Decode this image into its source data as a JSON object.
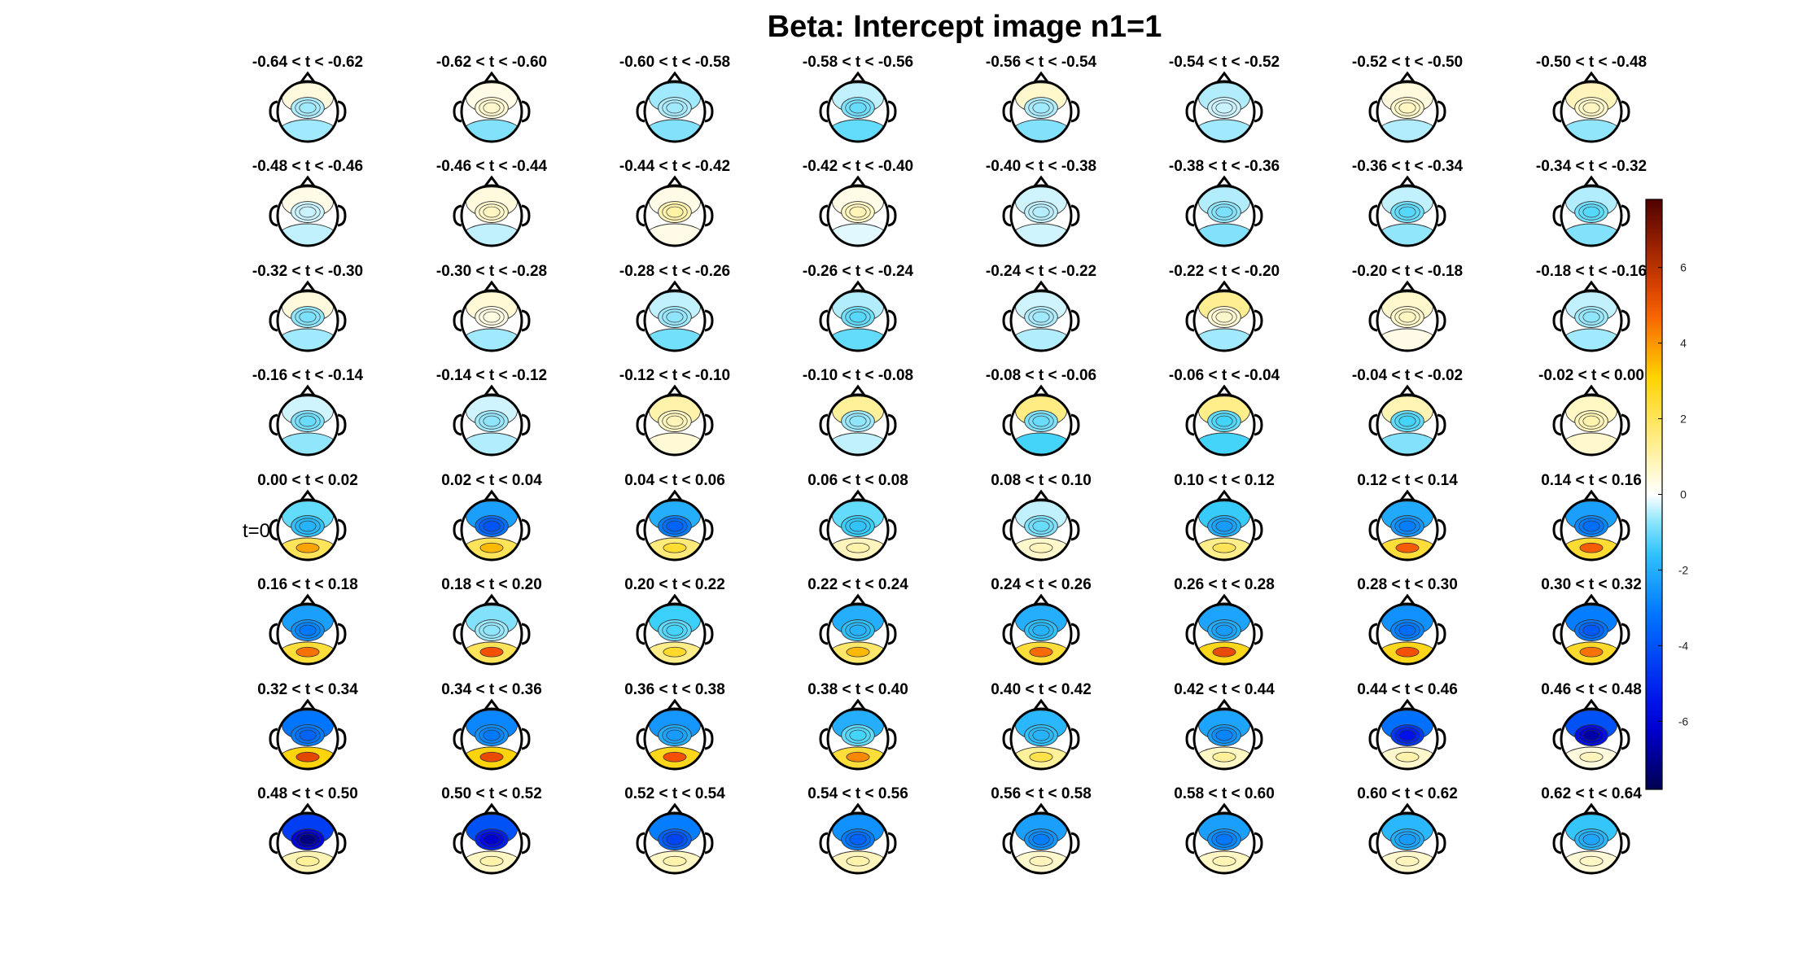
{
  "chart_data": {
    "type": "heatmap",
    "title": "Beta: Intercept image  n1=1",
    "grid": {
      "rows": 8,
      "cols": 8
    },
    "colorbar": {
      "colormap": "jet",
      "range": [
        -7.8,
        7.8
      ],
      "ticks": [
        -6,
        -4,
        -2,
        0,
        2,
        4,
        6
      ],
      "tick_labels": [
        "-6",
        "-4",
        "-2",
        "0",
        "2",
        "4",
        "6"
      ]
    },
    "marker_label": "t=0",
    "marker_panel": "0.00 < t < 0.02",
    "panels": [
      {
        "label": "-0.64 < t < -0.62",
        "front": 0.4,
        "central": -0.5,
        "posterior": -0.6
      },
      {
        "label": "-0.62 < t < -0.60",
        "front": 0.3,
        "central": 0.5,
        "posterior": -0.8
      },
      {
        "label": "-0.60 < t < -0.58",
        "front": -0.6,
        "central": -0.5,
        "posterior": -0.8
      },
      {
        "label": "-0.58 < t < -0.56",
        "front": -0.4,
        "central": -0.8,
        "posterior": -1.0
      },
      {
        "label": "-0.56 < t < -0.54",
        "front": 0.6,
        "central": -0.5,
        "posterior": -0.8
      },
      {
        "label": "-0.54 < t < -0.52",
        "front": -0.5,
        "central": -0.3,
        "posterior": -0.6
      },
      {
        "label": "-0.52 < t < -0.50",
        "front": 0.4,
        "central": 0.6,
        "posterior": -0.5
      },
      {
        "label": "-0.50 < t < -0.48",
        "front": 0.8,
        "central": 0.6,
        "posterior": -0.7
      },
      {
        "label": "-0.48 < t < -0.46",
        "front": 0.3,
        "central": -0.3,
        "posterior": -0.4
      },
      {
        "label": "-0.46 < t < -0.44",
        "front": 0.4,
        "central": 0.6,
        "posterior": -0.4
      },
      {
        "label": "-0.44 < t < -0.42",
        "front": 0.3,
        "central": 0.9,
        "posterior": 0.3
      },
      {
        "label": "-0.42 < t < -0.40",
        "front": 0.3,
        "central": 0.7,
        "posterior": -0.2
      },
      {
        "label": "-0.40 < t < -0.38",
        "front": -0.3,
        "central": -0.4,
        "posterior": -0.3
      },
      {
        "label": "-0.38 < t < -0.36",
        "front": -0.5,
        "central": -0.7,
        "posterior": -0.8
      },
      {
        "label": "-0.36 < t < -0.34",
        "front": -0.4,
        "central": -0.9,
        "posterior": -0.7
      },
      {
        "label": "-0.34 < t < -0.32",
        "front": -0.5,
        "central": -0.9,
        "posterior": -0.8
      },
      {
        "label": "-0.32 < t < -0.30",
        "front": 0.4,
        "central": -0.7,
        "posterior": -0.6
      },
      {
        "label": "-0.30 < t < -0.28",
        "front": 0.5,
        "central": 0.3,
        "posterior": -0.6
      },
      {
        "label": "-0.28 < t < -0.26",
        "front": -0.4,
        "central": -0.6,
        "posterior": -0.9
      },
      {
        "label": "-0.26 < t < -0.24",
        "front": -0.5,
        "central": -0.9,
        "posterior": -1.0
      },
      {
        "label": "-0.24 < t < -0.22",
        "front": -0.3,
        "central": -0.5,
        "posterior": -0.5
      },
      {
        "label": "-0.22 < t < -0.20",
        "front": 1.3,
        "central": 0.5,
        "posterior": -0.6
      },
      {
        "label": "-0.20 < t < -0.18",
        "front": 0.6,
        "central": 0.6,
        "posterior": 0.3
      },
      {
        "label": "-0.18 < t < -0.16",
        "front": -0.4,
        "central": -0.6,
        "posterior": -0.6
      },
      {
        "label": "-0.16 < t < -0.14",
        "front": -0.3,
        "central": -0.8,
        "posterior": -0.7
      },
      {
        "label": "-0.14 < t < -0.12",
        "front": -0.3,
        "central": -0.6,
        "posterior": -0.5
      },
      {
        "label": "-0.12 < t < -0.10",
        "front": 1.0,
        "central": 0.7,
        "posterior": 0.5
      },
      {
        "label": "-0.10 < t < -0.08",
        "front": 1.2,
        "central": -0.6,
        "posterior": -0.4
      },
      {
        "label": "-0.08 < t < -0.06",
        "front": 1.5,
        "central": -0.8,
        "posterior": -1.2
      },
      {
        "label": "-0.06 < t < -0.04",
        "front": 1.4,
        "central": -1.0,
        "posterior": -1.2
      },
      {
        "label": "-0.04 < t < -0.02",
        "front": 0.9,
        "central": -1.0,
        "posterior": -0.8
      },
      {
        "label": "-0.02 < t < 0.00",
        "front": 0.7,
        "central": 0.8,
        "posterior": 0.6
      },
      {
        "label": "0.00 < t < 0.02",
        "front": -1.0,
        "central": -1.6,
        "posterior": 2.0,
        "peak": 3.8
      },
      {
        "label": "0.02 < t < 0.04",
        "front": -2.3,
        "central": -3.3,
        "posterior": 2.0,
        "peak": 3.5
      },
      {
        "label": "0.04 < t < 0.06",
        "front": -2.0,
        "central": -3.0,
        "posterior": 1.6,
        "peak": 2.5
      },
      {
        "label": "0.06 < t < 0.08",
        "front": -1.0,
        "central": -1.3,
        "posterior": 0.8,
        "peak": 1.0
      },
      {
        "label": "0.08 < t < 0.10",
        "front": -0.4,
        "central": -0.8,
        "posterior": 0.6,
        "peak": 0.8
      },
      {
        "label": "0.10 < t < 0.12",
        "front": -1.4,
        "central": -2.0,
        "posterior": 1.4,
        "peak": 2.0
      },
      {
        "label": "0.12 < t < 0.14",
        "front": -2.1,
        "central": -2.5,
        "posterior": 2.4,
        "peak": 4.8
      },
      {
        "label": "0.14 < t < 0.16",
        "front": -2.3,
        "central": -2.8,
        "posterior": 2.5,
        "peak": 4.8
      },
      {
        "label": "0.16 < t < 0.18",
        "front": -2.3,
        "central": -2.6,
        "posterior": 2.4,
        "peak": 4.5
      },
      {
        "label": "0.18 < t < 0.20",
        "front": -0.8,
        "central": -0.6,
        "posterior": 2.0,
        "peak": 5.0
      },
      {
        "label": "0.20 < t < 0.22",
        "front": -1.3,
        "central": -1.0,
        "posterior": 1.4,
        "peak": 2.6
      },
      {
        "label": "0.22 < t < 0.24",
        "front": -2.0,
        "central": -1.6,
        "posterior": 1.8,
        "peak": 3.5
      },
      {
        "label": "0.24 < t < 0.26",
        "front": -2.0,
        "central": -1.6,
        "posterior": 2.4,
        "peak": 4.6
      },
      {
        "label": "0.26 < t < 0.28",
        "front": -2.2,
        "central": -2.0,
        "posterior": 2.8,
        "peak": 5.2
      },
      {
        "label": "0.28 < t < 0.30",
        "front": -2.6,
        "central": -2.8,
        "posterior": 2.8,
        "peak": 5.0
      },
      {
        "label": "0.30 < t < 0.32",
        "front": -3.0,
        "central": -3.2,
        "posterior": 2.6,
        "peak": 4.5
      },
      {
        "label": "0.32 < t < 0.34",
        "front": -3.2,
        "central": -3.0,
        "posterior": 3.0,
        "peak": 5.3
      },
      {
        "label": "0.34 < t < 0.36",
        "front": -2.8,
        "central": -2.6,
        "posterior": 3.0,
        "peak": 5.2
      },
      {
        "label": "0.36 < t < 0.38",
        "front": -2.5,
        "central": -2.0,
        "posterior": 2.8,
        "peak": 5.0
      },
      {
        "label": "0.38 < t < 0.40",
        "front": -2.0,
        "central": -1.0,
        "posterior": 2.4,
        "peak": 4.2
      },
      {
        "label": "0.40 < t < 0.42",
        "front": -1.8,
        "central": -1.6,
        "posterior": 1.2,
        "peak": 2.2
      },
      {
        "label": "0.42 < t < 0.44",
        "front": -2.2,
        "central": -2.4,
        "posterior": 0.7,
        "peak": 1.2
      },
      {
        "label": "0.44 < t < 0.46",
        "front": -3.3,
        "central": -4.6,
        "posterior": 0.6,
        "peak": 1.0
      },
      {
        "label": "0.46 < t < 0.48",
        "front": -4.0,
        "central": -5.6,
        "posterior": 0.4,
        "peak": 0.8
      },
      {
        "label": "0.48 < t < 0.50",
        "front": -4.5,
        "central": -6.0,
        "posterior": 0.9,
        "peak": 1.2
      },
      {
        "label": "0.50 < t < 0.52",
        "front": -4.0,
        "central": -5.2,
        "posterior": 0.7,
        "peak": 1.0
      },
      {
        "label": "0.52 < t < 0.54",
        "front": -3.0,
        "central": -3.6,
        "posterior": 0.7,
        "peak": 1.0
      },
      {
        "label": "0.54 < t < 0.56",
        "front": -2.6,
        "central": -3.0,
        "posterior": 0.8,
        "peak": 1.0
      },
      {
        "label": "0.56 < t < 0.58",
        "front": -2.3,
        "central": -2.5,
        "posterior": 0.6,
        "peak": 0.8
      },
      {
        "label": "0.58 < t < 0.60",
        "front": -2.3,
        "central": -2.6,
        "posterior": 0.7,
        "peak": 0.9
      },
      {
        "label": "0.60 < t < 0.62",
        "front": -1.8,
        "central": -2.0,
        "posterior": 0.6,
        "peak": 0.8
      },
      {
        "label": "0.62 < t < 0.64",
        "front": -1.5,
        "central": -1.8,
        "posterior": 0.5,
        "peak": 0.7
      }
    ]
  }
}
